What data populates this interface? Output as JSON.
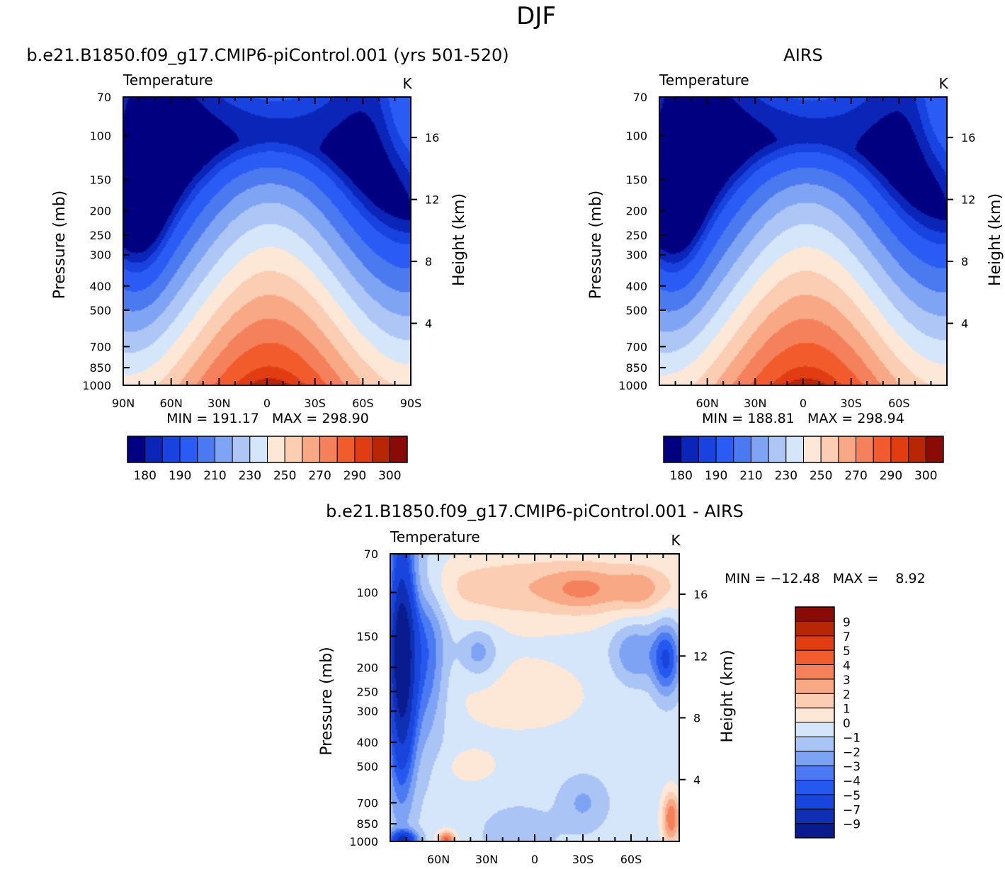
{
  "figure_title": "DJF",
  "colors": {
    "abs_levels": [
      "#000080",
      "#0a25b8",
      "#1843e0",
      "#2a5cf5",
      "#4a79f0",
      "#7fa4f3",
      "#adc6f6",
      "#d6e6fa",
      "#fde8d8",
      "#fbcdb3",
      "#f8a884",
      "#f4805c",
      "#f25c2d",
      "#e23d12",
      "#b72706",
      "#8a0a05"
    ],
    "diff_levels": [
      "#0a1a8f",
      "#0f2fb5",
      "#1a45dc",
      "#2558ee",
      "#4c7af2",
      "#7ea2f4",
      "#aac4f6",
      "#d6e6fa",
      "#fde8d8",
      "#fbcdb3",
      "#f8a884",
      "#f4805c",
      "#f25c2d",
      "#e23d12",
      "#b72706",
      "#8a0a05"
    ]
  },
  "chart_data": [
    {
      "id": "model",
      "type": "heatmap",
      "title": "b.e21.B1850.f09_g17.CMIP6-piControl.001 (yrs 501-520)",
      "left_label": "Temperature",
      "units": "K",
      "ylabel": "Pressure (mb)",
      "ylabel_right": "Height (km)",
      "xlabel": "",
      "y_ticks": [
        "70",
        "100",
        "150",
        "200",
        "250",
        "300",
        "400",
        "500",
        "700",
        "850",
        "1000"
      ],
      "y_tick_values": [
        70,
        100,
        150,
        200,
        250,
        300,
        400,
        500,
        700,
        850,
        1000
      ],
      "height_ticks": [
        "4",
        "8",
        "12",
        "16"
      ],
      "height_tick_values": [
        4,
        8,
        12,
        16
      ],
      "x_ticks": [
        "90N",
        "60N",
        "30N",
        "0",
        "30S",
        "60S",
        "90S"
      ],
      "x_tick_values": [
        90,
        60,
        30,
        0,
        -30,
        -60,
        -90
      ],
      "x_range": [
        90,
        -90
      ],
      "min_max_text": "MIN = 191.17   MAX = 298.90",
      "min": 191.17,
      "max": 298.9,
      "levels": [
        180,
        185,
        190,
        200,
        210,
        220,
        230,
        240,
        250,
        260,
        270,
        280,
        290,
        295,
        300
      ],
      "colorbar_labels": [
        "180",
        "190",
        "210",
        "230",
        "250",
        "270",
        "290",
        "300"
      ]
    },
    {
      "id": "obs",
      "type": "heatmap",
      "title": "AIRS",
      "left_label": "Temperature",
      "units": "K",
      "ylabel": "Pressure (mb)",
      "ylabel_right": "Height (km)",
      "y_ticks": [
        "70",
        "100",
        "150",
        "200",
        "250",
        "300",
        "400",
        "500",
        "700",
        "850",
        "1000"
      ],
      "y_tick_values": [
        70,
        100,
        150,
        200,
        250,
        300,
        400,
        500,
        700,
        850,
        1000
      ],
      "height_ticks": [
        "4",
        "8",
        "12",
        "16"
      ],
      "height_tick_values": [
        4,
        8,
        12,
        16
      ],
      "x_ticks": [
        "60N",
        "30N",
        "0",
        "30S",
        "60S"
      ],
      "x_tick_values": [
        60,
        30,
        0,
        -30,
        -60
      ],
      "x_range": [
        90,
        -90
      ],
      "min_max_text": "MIN = 188.81   MAX = 298.94",
      "min": 188.81,
      "max": 298.94,
      "levels": [
        180,
        185,
        190,
        200,
        210,
        220,
        230,
        240,
        250,
        260,
        270,
        280,
        290,
        295,
        300
      ],
      "colorbar_labels": [
        "180",
        "190",
        "210",
        "230",
        "250",
        "270",
        "290",
        "300"
      ]
    },
    {
      "id": "diff",
      "type": "heatmap",
      "title": "b.e21.B1850.f09_g17.CMIP6-piControl.001 - AIRS",
      "left_label": "Temperature",
      "units": "K",
      "ylabel": "Pressure (mb)",
      "ylabel_right": "Height (km)",
      "y_ticks": [
        "70",
        "100",
        "150",
        "200",
        "250",
        "300",
        "400",
        "500",
        "700",
        "850",
        "1000"
      ],
      "y_tick_values": [
        70,
        100,
        150,
        200,
        250,
        300,
        400,
        500,
        700,
        850,
        1000
      ],
      "height_ticks": [
        "4",
        "8",
        "12",
        "16"
      ],
      "height_tick_values": [
        4,
        8,
        12,
        16
      ],
      "x_ticks": [
        "60N",
        "30N",
        "0",
        "30S",
        "60S"
      ],
      "x_tick_values": [
        60,
        30,
        0,
        -30,
        -60
      ],
      "x_range": [
        90,
        -90
      ],
      "min_max_text": "MIN = −12.48   MAX =    8.92",
      "min": -12.48,
      "max": 8.92,
      "levels": [
        -9,
        -7,
        -5,
        -4,
        -3,
        -2,
        -1,
        0,
        1,
        2,
        3,
        4,
        5,
        7,
        9
      ],
      "colorbar_labels": [
        "9",
        "7",
        "5",
        "4",
        "3",
        "2",
        "1",
        "0",
        "−1",
        "−2",
        "−3",
        "−4",
        "−5",
        "−7",
        "−9"
      ]
    }
  ]
}
